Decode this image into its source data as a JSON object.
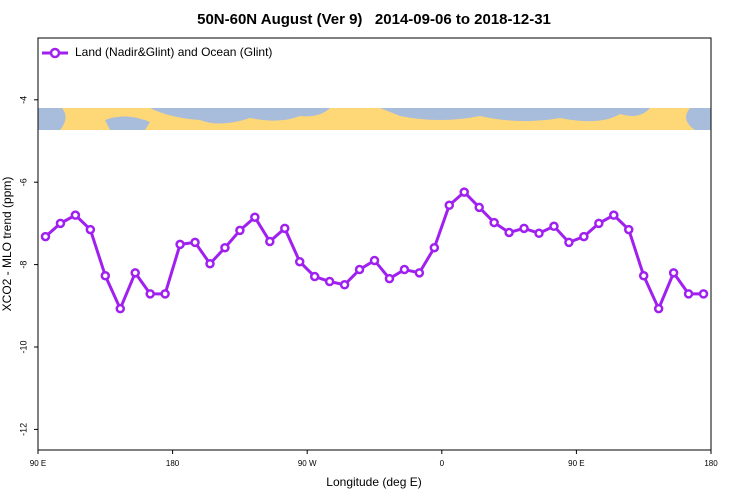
{
  "chart_data": {
    "type": "line",
    "title": "50N-60N August (Ver 9)   2014-09-06 to 2018-12-31",
    "xlabel": "Longitude (deg E)",
    "ylabel": "XCO2 - MLO trend (ppm)",
    "x": [
      95,
      105,
      115,
      125,
      135,
      145,
      155,
      165,
      175,
      185,
      195,
      205,
      215,
      225,
      235,
      245,
      255,
      265,
      275,
      285,
      295,
      305,
      315,
      325,
      335,
      345,
      355,
      365,
      375,
      385,
      395,
      405,
      415,
      425,
      435,
      445,
      455,
      465,
      475,
      485,
      495,
      505,
      515,
      525,
      535
    ],
    "series": [
      {
        "name": "Land (Nadir&Glint) and Ocean (Glint)",
        "color": "#a020f0",
        "values": [
          -7.32,
          -7.0,
          -6.8,
          -7.15,
          -8.27,
          -9.07,
          -8.2,
          -8.71,
          -8.71,
          -7.51,
          -7.46,
          -7.98,
          -7.59,
          -7.17,
          -6.85,
          -7.44,
          -7.12,
          -7.93,
          -8.29,
          -8.41,
          -8.49,
          -8.12,
          -7.9,
          -8.34,
          -8.12,
          -8.2,
          -7.59,
          -6.56,
          -6.24,
          -6.61,
          -6.98,
          -7.22,
          -7.12,
          -7.24,
          -7.07,
          -7.46,
          -7.32,
          -7.0,
          -6.8,
          -7.15,
          -8.27,
          -9.07,
          -8.2,
          -8.71,
          -8.71
        ]
      }
    ],
    "xlim": [
      90,
      540
    ],
    "xticks": [
      {
        "value": 90,
        "label": "90 E"
      },
      180,
      {
        "value": 270,
        "label": "90 W"
      },
      {
        "value": 360,
        "label": "0"
      },
      {
        "value": 450,
        "label": "90 E"
      },
      {
        "value": 540,
        "label": "180"
      }
    ],
    "ylim": [
      -12.5,
      -2.5
    ],
    "yticks": [
      -4,
      -6,
      -8,
      -10,
      -12
    ],
    "grid": false,
    "legend": "upper left"
  }
}
